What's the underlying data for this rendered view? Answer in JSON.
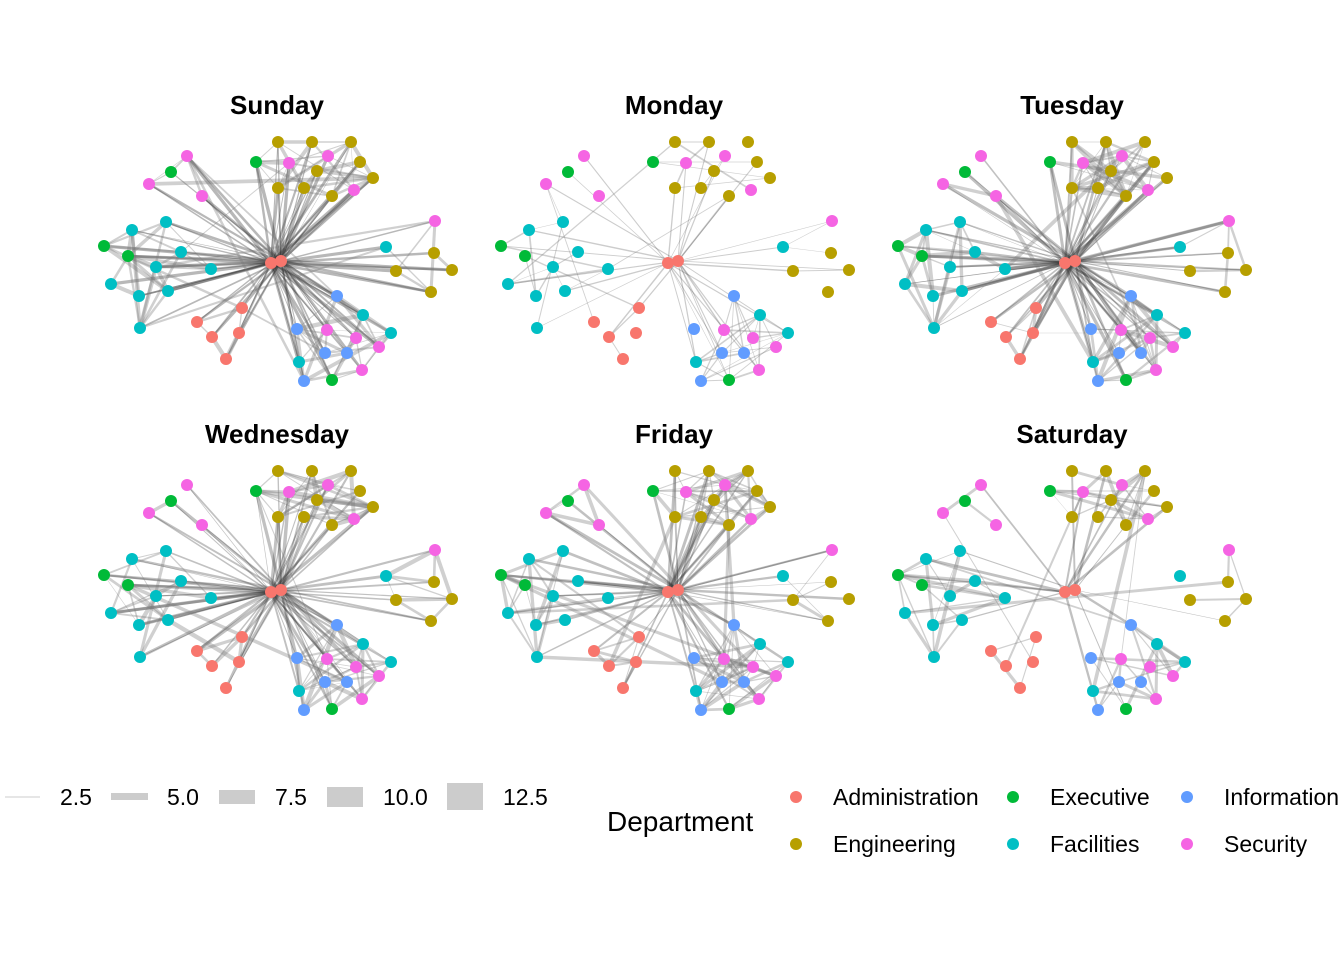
{
  "chart_data": {
    "type": "network",
    "panels": [
      {
        "title": "Sunday"
      },
      {
        "title": "Monday"
      },
      {
        "title": "Tuesday"
      },
      {
        "title": "Wednesday"
      },
      {
        "title": "Friday"
      },
      {
        "title": "Saturday"
      }
    ],
    "edge_width_legend": {
      "values": [
        "2.5",
        "5.0",
        "7.5",
        "10.0",
        "12.5"
      ]
    },
    "department_legend": {
      "title": "Department",
      "entries": [
        {
          "label": "Administration",
          "color": "#F8766D"
        },
        {
          "label": "Engineering",
          "color": "#B79F00"
        },
        {
          "label": "Executive",
          "color": "#00BA38"
        },
        {
          "label": "Facilities",
          "color": "#00BFC4"
        },
        {
          "label": "Information",
          "color": "#619CFF"
        },
        {
          "label": "Security",
          "color": "#F564E3"
        }
      ]
    }
  }
}
